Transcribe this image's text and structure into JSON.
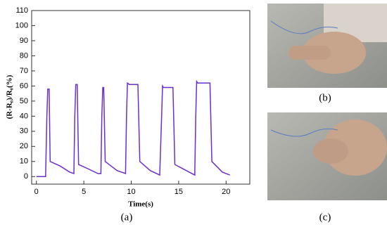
{
  "chart_data": {
    "type": "line",
    "y_label": "(R-R₀)/R₀(%)",
    "x_label": "Time(s)",
    "series": [
      {
        "color": "#6b2fd0",
        "x": [
          0,
          0.97,
          1.1,
          1.2,
          1.34,
          1.45,
          2.5,
          3.5,
          3.95,
          4.05,
          4.15,
          4.3,
          4.45,
          5.5,
          6.5,
          6.8,
          6.9,
          7.0,
          7.1,
          7.25,
          8.5,
          9.4,
          9.5,
          9.6,
          9.8,
          10.7,
          10.9,
          12.0,
          13.0,
          13.2,
          13.3,
          13.4,
          14.4,
          14.6,
          15.8,
          16.7,
          16.8,
          16.9,
          17.0,
          18.3,
          18.5,
          19.6,
          20.4
        ],
        "values": [
          0,
          0,
          40,
          58,
          58,
          10,
          7,
          3,
          2,
          40,
          61,
          61,
          8,
          5,
          2,
          2,
          40,
          59,
          59,
          10,
          4,
          2,
          40,
          62,
          61,
          61,
          10,
          4,
          1,
          40,
          60,
          59,
          59,
          8,
          4,
          1,
          40,
          63,
          62,
          62,
          10,
          3,
          1
        ]
      }
    ],
    "xlim": [
      -0.5,
      22.5
    ],
    "xticks": [
      0,
      5,
      10,
      15,
      20
    ],
    "ylim": [
      -5,
      110
    ],
    "yticks": [
      0,
      10,
      20,
      30,
      40,
      50,
      60,
      70,
      80,
      90,
      100,
      110
    ]
  },
  "panel_labels": [
    "(a)",
    "(b)",
    "(c)"
  ]
}
